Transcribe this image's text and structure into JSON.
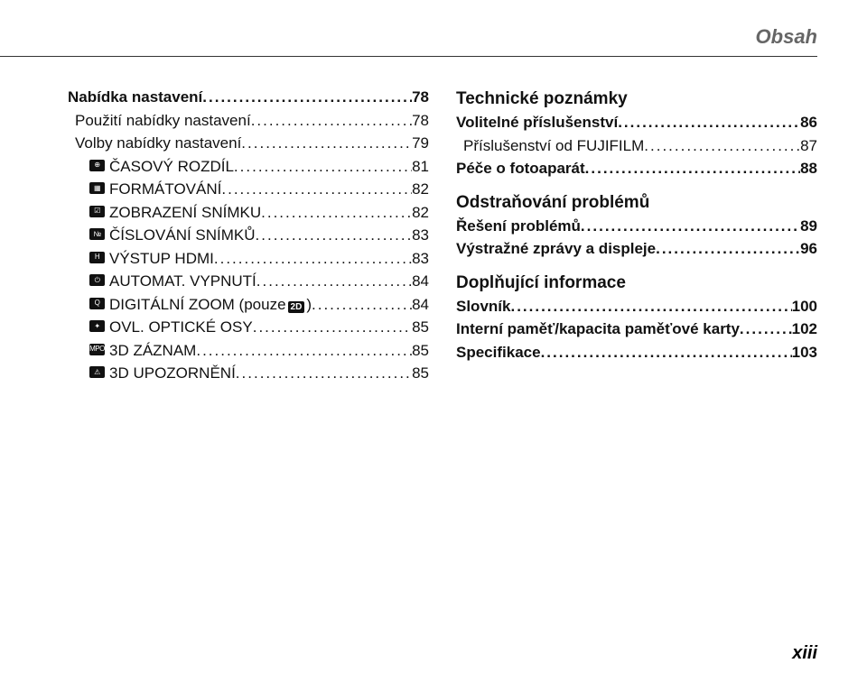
{
  "header": {
    "title": "Obsah"
  },
  "page_number": "xiii",
  "left": {
    "items": [
      {
        "label": "Nabídka nastavení",
        "page": "78",
        "bold": true,
        "indent": 0,
        "icon": null
      },
      {
        "label": "Použití nabídky nastavení",
        "page": "78",
        "bold": false,
        "indent": 1,
        "icon": null
      },
      {
        "label": "Volby nabídky nastavení",
        "page": "79",
        "bold": false,
        "indent": 1,
        "icon": null
      },
      {
        "label": "ČASOVÝ ROZDÍL",
        "page": "81",
        "bold": false,
        "indent": 2,
        "icon": "clock-icon",
        "glyph": "⊕"
      },
      {
        "label": "FORMÁTOVÁNÍ",
        "page": "82",
        "bold": false,
        "indent": 2,
        "icon": "format-icon",
        "glyph": "▦"
      },
      {
        "label": "ZOBRAZENÍ SNÍMKU",
        "page": "82",
        "bold": false,
        "indent": 2,
        "icon": "image-view-icon",
        "glyph": "☑"
      },
      {
        "label": "ČÍSLOVÁNÍ SNÍMKŮ",
        "page": "83",
        "bold": false,
        "indent": 2,
        "icon": "numbering-icon",
        "glyph": "№"
      },
      {
        "label": "VÝSTUP HDMI",
        "page": "83",
        "bold": false,
        "indent": 2,
        "icon": "hdmi-icon",
        "glyph": "H"
      },
      {
        "label": "AUTOMAT. VYPNUTÍ",
        "page": "84",
        "bold": false,
        "indent": 2,
        "icon": "power-icon",
        "glyph": "⏻"
      },
      {
        "label": "DIGITÁLNÍ ZOOM (pouze",
        "label2": ")",
        "page": "84",
        "bold": false,
        "indent": 2,
        "icon": "zoom-icon",
        "glyph": "Q",
        "inline_badge": "2D"
      },
      {
        "label": "OVL. OPTICKÉ OSY",
        "page": "85",
        "bold": false,
        "indent": 2,
        "icon": "axis-icon",
        "glyph": "✦"
      },
      {
        "label": "3D ZÁZNAM",
        "page": "85",
        "bold": false,
        "indent": 2,
        "icon": "mpo-icon",
        "glyph": "MPO"
      },
      {
        "label": "3D UPOZORNĚNÍ",
        "page": "85",
        "bold": false,
        "indent": 2,
        "icon": "warning-icon",
        "glyph": "⚠"
      }
    ]
  },
  "right": {
    "sections": [
      {
        "heading": "Technické poznámky",
        "items": [
          {
            "label": "Volitelné příslušenství",
            "page": "86",
            "bold": true,
            "indent": 0
          },
          {
            "label": "Příslušenství od FUJIFILM",
            "page": "87",
            "bold": false,
            "indent": 1
          },
          {
            "label": "Péče o fotoaparát",
            "page": "88",
            "bold": true,
            "indent": 0
          }
        ]
      },
      {
        "heading": "Odstraňování problémů",
        "items": [
          {
            "label": "Řešení problémů",
            "page": "89",
            "bold": true,
            "indent": 0
          },
          {
            "label": "Výstražné zprávy a displeje",
            "page": "96",
            "bold": true,
            "indent": 0
          }
        ]
      },
      {
        "heading": "Doplňující informace",
        "items": [
          {
            "label": "Slovník",
            "page": "100",
            "bold": true,
            "indent": 0,
            "space": true
          },
          {
            "label": "Interní paměť/kapacita paměťové karty",
            "page": "102",
            "bold": true,
            "indent": 0,
            "space": true
          },
          {
            "label": "Specifikace",
            "page": "103",
            "bold": true,
            "indent": 0,
            "space": true
          }
        ]
      }
    ]
  }
}
